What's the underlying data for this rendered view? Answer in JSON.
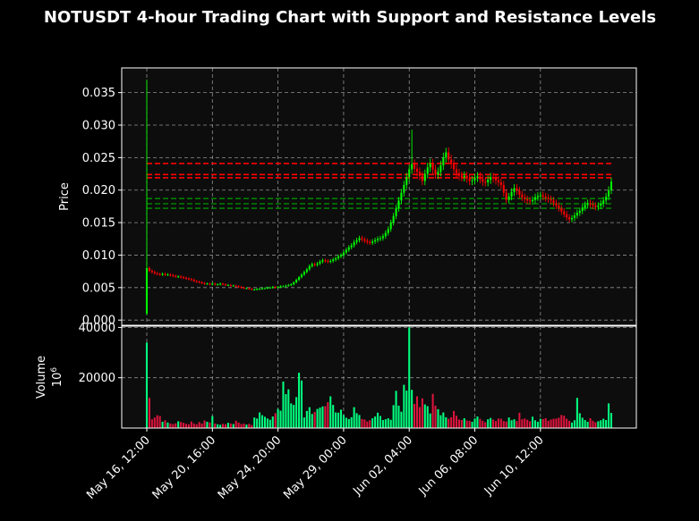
{
  "chart_data": {
    "type": "candlestick",
    "title": "NOTUSDT 4-hour Trading Chart with Support and Resistance Levels",
    "price_panel": {
      "ylabel": "Price",
      "ylim": [
        -0.0008,
        0.0388
      ],
      "yticks": [
        0.0,
        0.005,
        0.01,
        0.015,
        0.02,
        0.025,
        0.03,
        0.035
      ],
      "ytick_labels": [
        "0.000",
        "0.005",
        "0.010",
        "0.015",
        "0.020",
        "0.025",
        "0.030",
        "0.035"
      ],
      "resistance_levels": [
        0.0241,
        0.0224,
        0.0219
      ],
      "support_levels": [
        0.0187,
        0.0179,
        0.0172
      ],
      "resistance_color": "#ff0000",
      "support_color": "#008000",
      "grid": true
    },
    "volume_panel": {
      "ylabel": "Volume",
      "exponent_label": "10^6",
      "ylim": [
        0,
        40500
      ],
      "yticks": [
        20000,
        40000
      ],
      "ytick_labels": [
        "20000",
        "40000"
      ],
      "grid": true
    },
    "x_axis": {
      "start": "May 16, 12:00",
      "interval_hours": 4,
      "tick_labels": [
        "May 16, 12:00",
        "May 20, 16:00",
        "May 24, 20:00",
        "May 29, 00:00",
        "Jun 02, 04:00",
        "Jun 06, 08:00",
        "Jun 10, 12:00"
      ],
      "tick_positions": [
        0,
        25,
        50,
        75,
        100,
        125,
        150
      ]
    },
    "up_color": "#00ff00",
    "down_color": "#ff0000",
    "volume_up_color": "#00ff7f",
    "volume_down_color": "#dc143c",
    "background_color": "#0d0d0d",
    "page_color": "#000000",
    "close_series": [
      0.008,
      0.0076,
      0.0074,
      0.0072,
      0.0071,
      0.007,
      0.0071,
      0.007,
      0.007,
      0.0069,
      0.0068,
      0.0067,
      0.0067,
      0.0066,
      0.0065,
      0.0064,
      0.0063,
      0.0062,
      0.006,
      0.0059,
      0.0058,
      0.0057,
      0.0056,
      0.0056,
      0.0055,
      0.0056,
      0.0055,
      0.0055,
      0.0056,
      0.0055,
      0.0054,
      0.0054,
      0.0053,
      0.0053,
      0.0052,
      0.0051,
      0.005,
      0.0049,
      0.0049,
      0.0048,
      0.0047,
      0.0047,
      0.0048,
      0.0048,
      0.0049,
      0.0049,
      0.005,
      0.005,
      0.0051,
      0.005,
      0.0051,
      0.0052,
      0.0052,
      0.0053,
      0.0054,
      0.0055,
      0.0058,
      0.0062,
      0.0066,
      0.007,
      0.0074,
      0.0078,
      0.0083,
      0.0086,
      0.0085,
      0.0087,
      0.009,
      0.0092,
      0.0091,
      0.009,
      0.0091,
      0.0093,
      0.0095,
      0.0098,
      0.01,
      0.0104,
      0.0108,
      0.0112,
      0.0115,
      0.012,
      0.0123,
      0.0126,
      0.0124,
      0.0122,
      0.012,
      0.0119,
      0.0121,
      0.0123,
      0.0125,
      0.0126,
      0.0129,
      0.0134,
      0.014,
      0.015,
      0.016,
      0.0172,
      0.0184,
      0.0196,
      0.0208,
      0.022,
      0.0232,
      0.024,
      0.0233,
      0.0228,
      0.0222,
      0.0214,
      0.0225,
      0.0235,
      0.0241,
      0.0232,
      0.0224,
      0.0228,
      0.0238,
      0.025,
      0.0258,
      0.0247,
      0.024,
      0.0232,
      0.0226,
      0.0222,
      0.022,
      0.0222,
      0.0218,
      0.0214,
      0.0215,
      0.0219,
      0.0221,
      0.0217,
      0.0213,
      0.0212,
      0.0216,
      0.022,
      0.0218,
      0.0215,
      0.0212,
      0.0208,
      0.0196,
      0.0185,
      0.019,
      0.0197,
      0.0203,
      0.0199,
      0.0193,
      0.0189,
      0.0186,
      0.0184,
      0.0183,
      0.0185,
      0.0189,
      0.0191,
      0.0192,
      0.019,
      0.0188,
      0.0186,
      0.0184,
      0.018,
      0.0176,
      0.0172,
      0.0167,
      0.0163,
      0.0158,
      0.0155,
      0.0157,
      0.0161,
      0.0165,
      0.0168,
      0.0173,
      0.0177,
      0.018,
      0.0178,
      0.0176,
      0.0174,
      0.0176,
      0.0179,
      0.0184,
      0.019,
      0.02,
      0.0213
    ],
    "volume_series": [
      34000,
      12000,
      3500,
      4200,
      5100,
      4800,
      2500,
      3100,
      2200,
      1800,
      1600,
      1900,
      2700,
      2400,
      2100,
      1700,
      1500,
      2600,
      1800,
      1500,
      2400,
      1800,
      3000,
      2500,
      2200,
      4800,
      1800,
      1500,
      1300,
      1700,
      1500,
      2100,
      1800,
      1600,
      2900,
      2200,
      1600,
      1800,
      1400,
      1700,
      1200,
      4200,
      3800,
      6200,
      5100,
      4500,
      3800,
      3300,
      4600,
      5900,
      7600,
      6900,
      18500,
      13500,
      15400,
      9800,
      9200,
      12300,
      22000,
      18900,
      4200,
      6800,
      8300,
      5600,
      6400,
      7600,
      8100,
      8600,
      8700,
      10300,
      12600,
      9200,
      6200,
      6100,
      7300,
      5200,
      4100,
      3600,
      4300,
      8300,
      5900,
      5200,
      3600,
      3400,
      2600,
      3100,
      3900,
      4600,
      6100,
      4800,
      3200,
      3500,
      3900,
      3300,
      9100,
      14800,
      8900,
      6500,
      17200,
      14900,
      40000,
      15200,
      9600,
      12600,
      8300,
      11800,
      9400,
      8700,
      5800,
      13600,
      8900,
      7500,
      5100,
      6200,
      4300,
      3700,
      4300,
      6800,
      4900,
      3400,
      3200,
      3900,
      3000,
      2900,
      2500,
      3800,
      4600,
      3700,
      2900,
      2300,
      3500,
      4000,
      3400,
      2800,
      3800,
      3700,
      2800,
      2600,
      4200,
      3100,
      3500,
      2800,
      6100,
      3500,
      3800,
      3300,
      2700,
      4500,
      3100,
      2500,
      3700,
      3600,
      3900,
      2900,
      3400,
      3700,
      3800,
      4100,
      5200,
      4900,
      3700,
      2900,
      2200,
      3100,
      12000,
      5900,
      4100,
      3200,
      2500,
      3900,
      2900,
      2300,
      2700,
      3100,
      3700,
      3200,
      9800,
      6000
    ]
  }
}
